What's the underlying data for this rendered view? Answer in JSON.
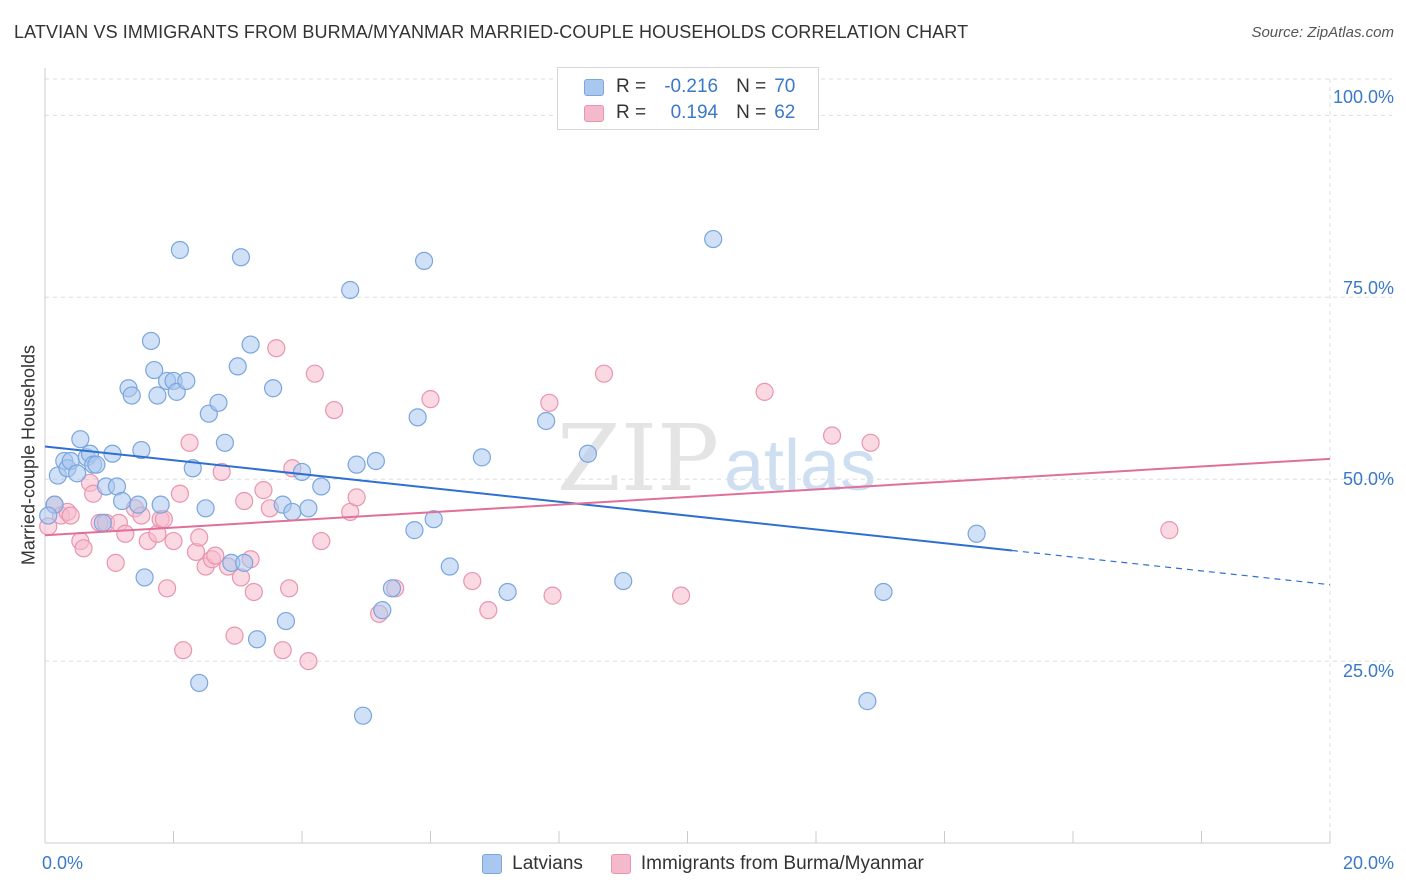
{
  "title": "LATVIAN VS IMMIGRANTS FROM BURMA/MYANMAR MARRIED-COUPLE HOUSEHOLDS CORRELATION CHART",
  "source": "Source: ZipAtlas.com",
  "watermark": {
    "zip": "ZIP",
    "atlas": "atlas"
  },
  "legend_top": {
    "rows": [
      {
        "r_label": "R =",
        "r_value": "-0.216",
        "n_label": "N =",
        "n_value": "70",
        "series": "Latvians"
      },
      {
        "r_label": "R =",
        "r_value": "0.194",
        "n_label": "N =",
        "n_value": "62",
        "series": "Immigrants from Burma/Myanmar"
      }
    ]
  },
  "legend_bottom": [
    "Latvians",
    "Immigrants from Burma/Myanmar"
  ],
  "colors": {
    "blue_fill": "#a9c7ef",
    "blue_stroke": "#7aa6dd",
    "blue_line": "#2f6fd0",
    "pink_fill": "#f5b9cc",
    "pink_stroke": "#e995b0",
    "pink_line": "#e0709a",
    "value_text": "#3a78c9",
    "grid": "#dddddd"
  },
  "chart_data": {
    "type": "scatter",
    "title": "LATVIAN VS IMMIGRANTS FROM BURMA/MYANMAR MARRIED-COUPLE HOUSEHOLDS CORRELATION CHART",
    "xlabel": "",
    "ylabel": "Married-couple Households",
    "xlim": [
      0,
      20
    ],
    "ylim": [
      0,
      105
    ],
    "x_ticks": [
      "0.0%",
      "20.0%"
    ],
    "y_ticks": [
      {
        "value": 100,
        "label": "100.0%"
      },
      {
        "value": 75,
        "label": "75.0%"
      },
      {
        "value": 50,
        "label": "50.0%"
      },
      {
        "value": 25,
        "label": "25.0%"
      }
    ],
    "grid": true,
    "series": [
      {
        "name": "Latvians",
        "r": -0.216,
        "n": 70,
        "trend": {
          "x0": 0,
          "y0": 54.5,
          "x1": 15.05,
          "y1": 40.2,
          "dash_x1": 20,
          "dash_y1": 35.5
        },
        "points": [
          [
            0.15,
            46.5
          ],
          [
            0.2,
            50.5
          ],
          [
            0.3,
            52.5
          ],
          [
            0.35,
            51.5
          ],
          [
            0.4,
            52.5
          ],
          [
            0.5,
            50.8
          ],
          [
            0.55,
            55.5
          ],
          [
            0.65,
            53
          ],
          [
            0.7,
            53.5
          ],
          [
            0.75,
            52
          ],
          [
            0.8,
            52
          ],
          [
            0.9,
            44
          ],
          [
            0.95,
            49
          ],
          [
            1.05,
            53.5
          ],
          [
            1.12,
            49
          ],
          [
            1.2,
            47
          ],
          [
            1.3,
            62.5
          ],
          [
            1.35,
            61.5
          ],
          [
            1.45,
            46.5
          ],
          [
            1.5,
            54
          ],
          [
            1.55,
            36.5
          ],
          [
            1.65,
            69
          ],
          [
            1.7,
            65
          ],
          [
            1.75,
            61.5
          ],
          [
            1.8,
            46.5
          ],
          [
            1.9,
            63.5
          ],
          [
            2.0,
            63.5
          ],
          [
            2.05,
            62
          ],
          [
            2.1,
            81.5
          ],
          [
            2.2,
            63.5
          ],
          [
            2.3,
            51.5
          ],
          [
            2.4,
            22
          ],
          [
            2.5,
            46
          ],
          [
            2.55,
            59
          ],
          [
            2.7,
            60.5
          ],
          [
            2.8,
            55
          ],
          [
            2.9,
            38.5
          ],
          [
            3.0,
            65.5
          ],
          [
            3.05,
            80.5
          ],
          [
            3.1,
            38.5
          ],
          [
            3.2,
            68.5
          ],
          [
            3.3,
            28
          ],
          [
            3.55,
            62.5
          ],
          [
            3.7,
            46.5
          ],
          [
            3.75,
            30.5
          ],
          [
            3.85,
            45.5
          ],
          [
            4.0,
            51
          ],
          [
            4.1,
            46
          ],
          [
            4.3,
            49
          ],
          [
            4.75,
            76
          ],
          [
            4.85,
            52
          ],
          [
            4.95,
            17.5
          ],
          [
            5.15,
            52.5
          ],
          [
            5.25,
            32
          ],
          [
            5.4,
            35
          ],
          [
            5.75,
            43
          ],
          [
            5.8,
            58.5
          ],
          [
            5.9,
            80
          ],
          [
            6.05,
            44.5
          ],
          [
            6.3,
            38
          ],
          [
            6.8,
            53
          ],
          [
            7.2,
            34.5
          ],
          [
            7.8,
            58
          ],
          [
            8.45,
            53.5
          ],
          [
            9.0,
            36
          ],
          [
            10.4,
            83
          ],
          [
            12.8,
            19.5
          ],
          [
            13.05,
            34.5
          ],
          [
            14.5,
            42.5
          ],
          [
            0.05,
            45
          ]
        ]
      },
      {
        "name": "Immigrants from Burma/Myanmar",
        "r": 0.194,
        "n": 62,
        "trend": {
          "x0": 0,
          "y0": 42.3,
          "x1": 20,
          "y1": 52.8
        },
        "points": [
          [
            0.05,
            43.5
          ],
          [
            0.15,
            46.5
          ],
          [
            0.25,
            45
          ],
          [
            0.35,
            45.5
          ],
          [
            0.4,
            45
          ],
          [
            0.55,
            41.5
          ],
          [
            0.6,
            40.5
          ],
          [
            0.7,
            49.5
          ],
          [
            0.75,
            48
          ],
          [
            0.85,
            44
          ],
          [
            0.95,
            44
          ],
          [
            1.1,
            38.5
          ],
          [
            1.15,
            44
          ],
          [
            1.25,
            42.5
          ],
          [
            1.4,
            46
          ],
          [
            1.5,
            45
          ],
          [
            1.6,
            41.5
          ],
          [
            1.75,
            42.5
          ],
          [
            1.8,
            44.5
          ],
          [
            1.85,
            44.5
          ],
          [
            1.9,
            35
          ],
          [
            2.0,
            41.5
          ],
          [
            2.1,
            48
          ],
          [
            2.15,
            26.5
          ],
          [
            2.25,
            55
          ],
          [
            2.35,
            40
          ],
          [
            2.4,
            42
          ],
          [
            2.5,
            38
          ],
          [
            2.6,
            39
          ],
          [
            2.65,
            39.5
          ],
          [
            2.75,
            51
          ],
          [
            2.85,
            38
          ],
          [
            2.95,
            28.5
          ],
          [
            3.05,
            36.5
          ],
          [
            3.1,
            47
          ],
          [
            3.2,
            39
          ],
          [
            3.25,
            34.5
          ],
          [
            3.4,
            48.5
          ],
          [
            3.5,
            46
          ],
          [
            3.6,
            68
          ],
          [
            3.7,
            26.5
          ],
          [
            3.8,
            35
          ],
          [
            3.85,
            51.5
          ],
          [
            4.1,
            25
          ],
          [
            4.2,
            64.5
          ],
          [
            4.3,
            41.5
          ],
          [
            4.5,
            59.5
          ],
          [
            4.75,
            45.5
          ],
          [
            4.85,
            47.5
          ],
          [
            5.2,
            31.5
          ],
          [
            5.45,
            35
          ],
          [
            6.0,
            61
          ],
          [
            6.65,
            36
          ],
          [
            6.9,
            32
          ],
          [
            7.85,
            60.5
          ],
          [
            7.9,
            34
          ],
          [
            8.7,
            64.5
          ],
          [
            9.9,
            34
          ],
          [
            11.2,
            62
          ],
          [
            12.25,
            56
          ],
          [
            12.85,
            55
          ],
          [
            17.5,
            43
          ]
        ]
      }
    ]
  }
}
